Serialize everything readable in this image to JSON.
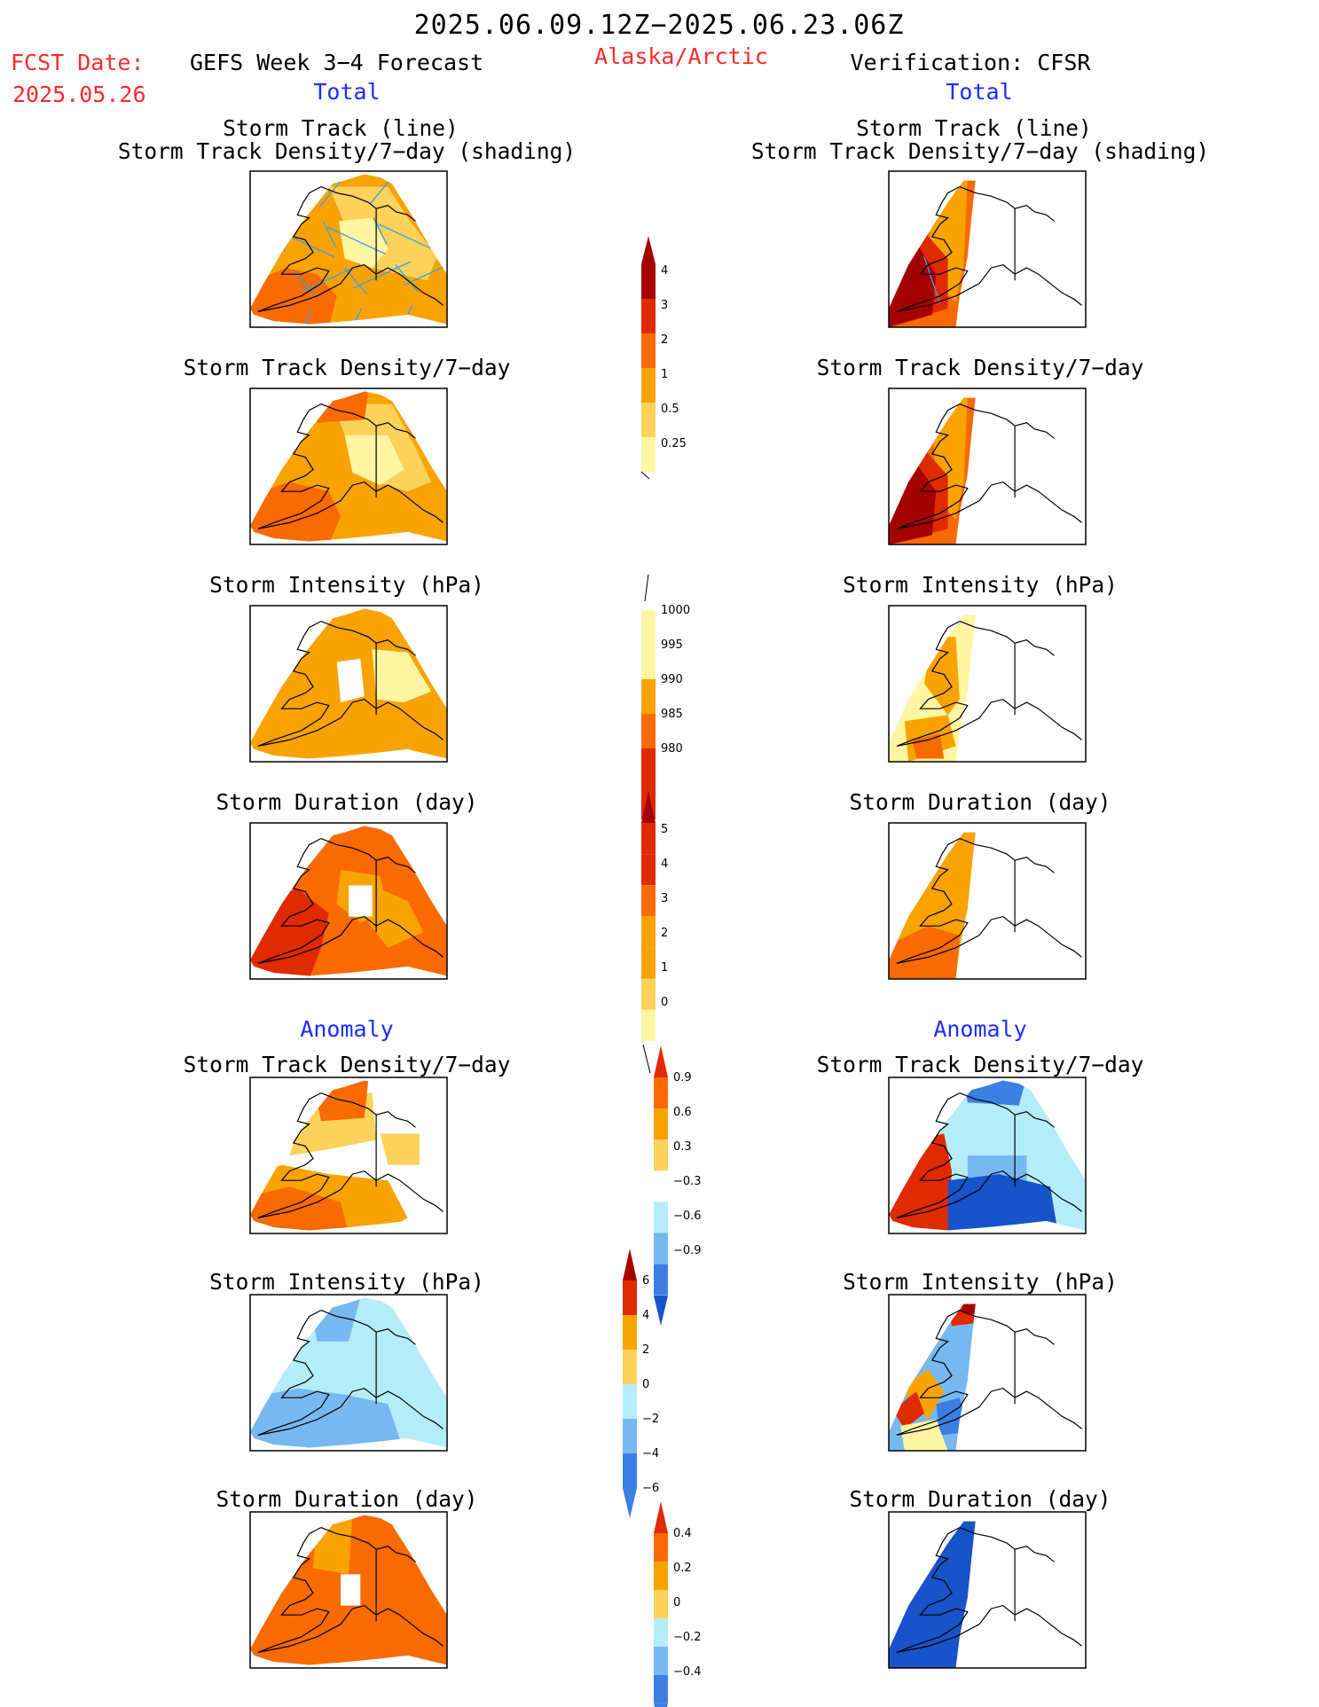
{
  "header": {
    "title": "2025.06.09.12Z−2025.06.23.06Z",
    "fcst_label": "FCST Date:",
    "fcst_date": "2025.05.26",
    "forecast": "GEFS Week 3−4 Forecast",
    "region": "Alaska/Arctic",
    "verification": "Verification: CFSR",
    "total_left": "Total",
    "total_right": "Total"
  },
  "sections": {
    "anomaly_left": "Anomaly",
    "anomaly_right": "Anomaly"
  },
  "panels": {
    "track_line": "Storm Track (line)",
    "track_shading": "Storm Track Density/7−day (shading)",
    "density": "Storm Track Density/7−day",
    "intensity": "Storm Intensity (hPa)",
    "duration": "Storm Duration (day)"
  },
  "colors": {
    "c1": "#fff5a3",
    "c2": "#fcd25a",
    "c3": "#f9a300",
    "c4": "#f96a00",
    "c5": "#e02a00",
    "c6": "#a50000",
    "b1": "#b5ecf9",
    "b2": "#78b8f0",
    "b3": "#3b7fe2",
    "b4": "#1753c9",
    "track": "#3aa3e0"
  },
  "chart_data": [
    {
      "type": "heatmap",
      "id": "colorbar_density_total",
      "ticks": [
        "0.25",
        "0.5",
        "1",
        "2",
        "3",
        "4"
      ]
    },
    {
      "type": "heatmap",
      "id": "colorbar_intensity_total",
      "ticks": [
        "1000",
        "995",
        "990",
        "985",
        "980"
      ]
    },
    {
      "type": "heatmap",
      "id": "colorbar_duration_total",
      "ticks": [
        "0",
        "1",
        "2",
        "3",
        "4",
        "5"
      ]
    },
    {
      "type": "heatmap",
      "id": "colorbar_density_anomaly",
      "ticks": [
        "0.9",
        "0.6",
        "0.3",
        "−0.3",
        "−0.6",
        "−0.9"
      ]
    },
    {
      "type": "heatmap",
      "id": "colorbar_intensity_anomaly",
      "ticks": [
        "6",
        "4",
        "2",
        "0",
        "−2",
        "−4",
        "−6"
      ]
    },
    {
      "type": "heatmap",
      "id": "colorbar_duration_anomaly",
      "ticks": [
        "0.4",
        "0.2",
        "0",
        "−0.2",
        "−0.4"
      ]
    }
  ]
}
